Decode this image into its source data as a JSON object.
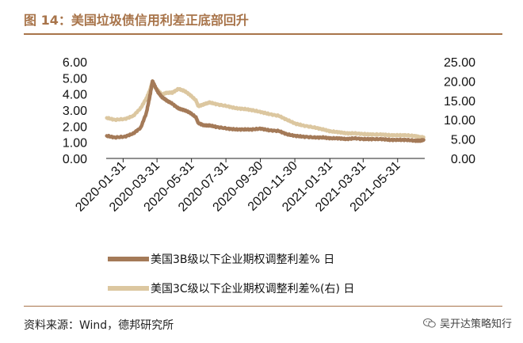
{
  "header": {
    "title": "图 14：美国垃圾债信用利差正底部回升"
  },
  "footer": {
    "source": "资料来源：Wind，德邦研究所",
    "watermark": "吴开达策略知行"
  },
  "colors": {
    "accent": "#a8744a",
    "series1": "#a47a58",
    "series2": "#dcc7a0"
  },
  "chart_data": {
    "type": "line",
    "title": "美国垃圾债信用利差正底部回升",
    "x": [
      "2020-01-02",
      "2020-01-16",
      "2020-02-03",
      "2020-02-18",
      "2020-03-02",
      "2020-03-12",
      "2020-03-18",
      "2020-03-23",
      "2020-03-27",
      "2020-04-02",
      "2020-04-09",
      "2020-04-17",
      "2020-04-27",
      "2020-05-08",
      "2020-05-18",
      "2020-05-28",
      "2020-06-08",
      "2020-06-12",
      "2020-06-22",
      "2020-07-02",
      "2020-07-15",
      "2020-08-03",
      "2020-08-17",
      "2020-09-01",
      "2020-09-15",
      "2020-10-01",
      "2020-10-15",
      "2020-11-02",
      "2020-11-16",
      "2020-12-01",
      "2020-12-15",
      "2021-01-04",
      "2021-01-19",
      "2021-02-01",
      "2021-02-16",
      "2021-03-01",
      "2021-03-15",
      "2021-04-01",
      "2021-04-15",
      "2021-05-03",
      "2021-05-17",
      "2021-06-01",
      "2021-06-15",
      "2021-07-01",
      "2021-07-09",
      "2021-07-16"
    ],
    "series": [
      {
        "name": "美国3B级以下企业期权调整利差% 日",
        "axis": "left",
        "values": [
          1.4,
          1.3,
          1.35,
          1.55,
          1.9,
          2.8,
          3.8,
          4.8,
          4.5,
          4.1,
          3.8,
          3.6,
          3.4,
          3.1,
          3.0,
          2.85,
          2.55,
          2.2,
          2.05,
          2.05,
          1.95,
          1.85,
          1.8,
          1.8,
          1.8,
          1.85,
          1.75,
          1.7,
          1.5,
          1.4,
          1.35,
          1.3,
          1.3,
          1.25,
          1.25,
          1.2,
          1.25,
          1.2,
          1.2,
          1.2,
          1.15,
          1.15,
          1.15,
          1.1,
          1.1,
          1.15
        ]
      },
      {
        "name": "美国3C级以下企业期权调整利差%(右) 日",
        "axis": "right",
        "values": [
          10.5,
          10.0,
          10.2,
          11.0,
          13.0,
          15.5,
          17.5,
          20.0,
          18.5,
          17.5,
          16.5,
          17.0,
          17.0,
          18.0,
          17.5,
          16.5,
          15.0,
          13.5,
          14.0,
          14.5,
          14.0,
          13.5,
          13.0,
          12.8,
          12.5,
          12.0,
          11.5,
          11.0,
          10.0,
          9.0,
          8.5,
          8.0,
          7.5,
          7.0,
          6.8,
          6.5,
          6.5,
          6.3,
          6.2,
          6.2,
          6.0,
          6.0,
          6.0,
          5.8,
          5.5,
          5.5
        ]
      }
    ],
    "x_tick_labels": [
      "2020-01-31",
      "2020-03-31",
      "2020-05-31",
      "2020-07-31",
      "2020-09-30",
      "2020-11-30",
      "2021-01-31",
      "2021-03-31",
      "2021-05-31"
    ],
    "y_left": {
      "ticks": [
        "0.00",
        "1.00",
        "2.00",
        "3.00",
        "4.00",
        "5.00",
        "6.00"
      ],
      "ylim": [
        0,
        6
      ]
    },
    "y_right": {
      "ticks": [
        "0.00",
        "5.00",
        "10.00",
        "15.00",
        "20.00",
        "25.00"
      ],
      "ylim": [
        0,
        25
      ]
    },
    "xlim": [
      "2020-01-01",
      "2021-07-18"
    ],
    "grid": false,
    "legend_position": "bottom"
  }
}
